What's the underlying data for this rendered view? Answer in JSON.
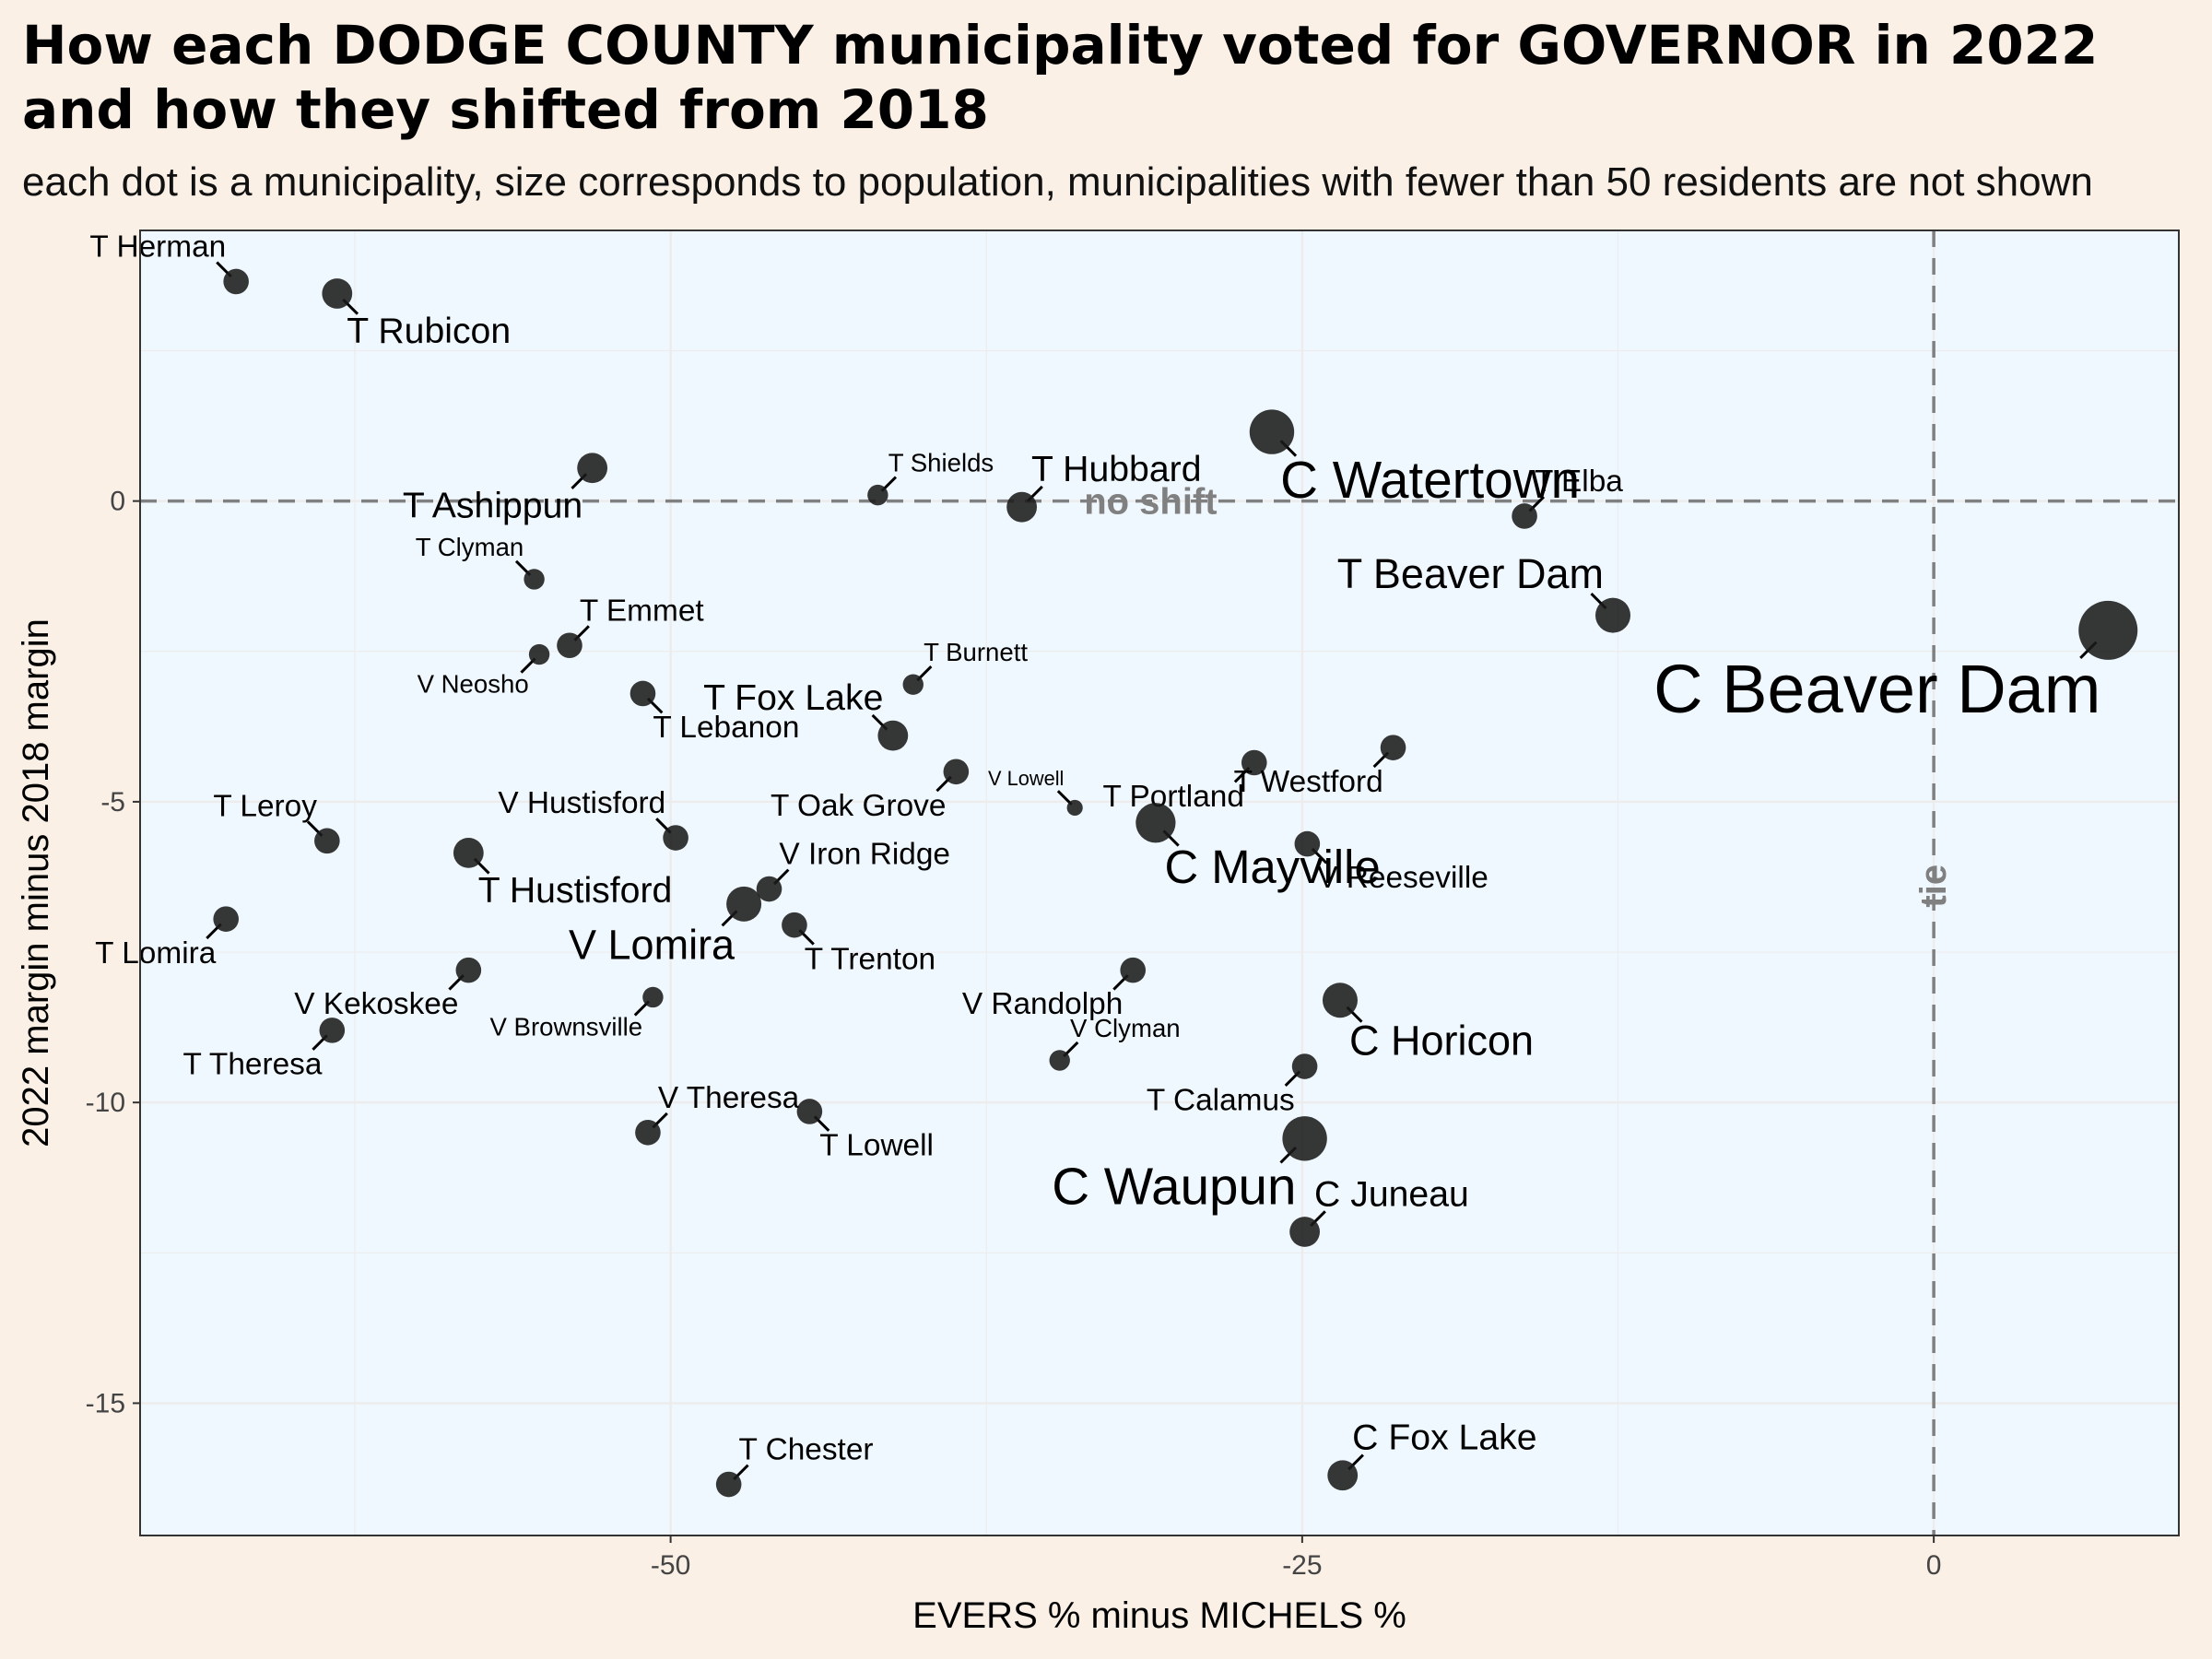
{
  "title": "How each DODGE COUNTY municipality voted for GOVERNOR in 2022 and how they shifted from 2018",
  "subtitle": "each dot is a municipality, size corresponds to population, municipalities with fewer than 50 residents are not shown",
  "colors": {
    "page_background": "#faf0e6",
    "panel_background": "#f0f8ff",
    "gridline": "#ececec",
    "point": "#1a1a1a",
    "reference_line": "#808080"
  },
  "chart_data": {
    "type": "scatter",
    "xlabel": "EVERS % minus MICHELS %",
    "ylabel": "2022 margin minus 2018 margin",
    "xlim": [
      -71,
      9.7
    ],
    "ylim": [
      -17.2,
      4.5
    ],
    "xticks": [
      -50,
      -25,
      0
    ],
    "yticks": [
      -15,
      -10,
      -5,
      0
    ],
    "grid": true,
    "reference_lines": [
      {
        "axis": "y",
        "value": 0,
        "label": "no shift",
        "style": "dashed"
      },
      {
        "axis": "x",
        "value": 0,
        "label": "tie",
        "style": "dashed"
      }
    ],
    "points": [
      {
        "name": "T Herman",
        "x": -67.2,
        "y": 3.65,
        "size": 3,
        "label_pos": "above-left"
      },
      {
        "name": "T Rubicon",
        "x": -63.2,
        "y": 3.45,
        "size": 4,
        "label_pos": "below-right"
      },
      {
        "name": "T Ashippun",
        "x": -53.1,
        "y": 0.55,
        "size": 4,
        "label_pos": "below-left"
      },
      {
        "name": "T Shields",
        "x": -41.8,
        "y": 0.1,
        "size": 2,
        "label_pos": "above-right"
      },
      {
        "name": "T Hubbard",
        "x": -36.1,
        "y": -0.1,
        "size": 4,
        "label_pos": "above-right"
      },
      {
        "name": "C Watertown",
        "x": -26.2,
        "y": 1.15,
        "size": 7,
        "label_pos": "below-right"
      },
      {
        "name": "T Elba",
        "x": -16.2,
        "y": -0.25,
        "size": 3,
        "label_pos": "above-right"
      },
      {
        "name": "T Beaver Dam",
        "x": -12.7,
        "y": -1.9,
        "size": 5,
        "label_pos": "above-left"
      },
      {
        "name": "C Beaver Dam",
        "x": 6.9,
        "y": -2.15,
        "size": 10,
        "label_pos": "below-left"
      },
      {
        "name": "T Clyman",
        "x": -55.4,
        "y": -1.3,
        "size": 2,
        "label_pos": "above-left"
      },
      {
        "name": "T Emmet",
        "x": -54.0,
        "y": -2.4,
        "size": 3,
        "label_pos": "above-right"
      },
      {
        "name": "V Neosho",
        "x": -55.2,
        "y": -2.55,
        "size": 2,
        "label_pos": "below-left"
      },
      {
        "name": "T Lebanon",
        "x": -51.1,
        "y": -3.2,
        "size": 3,
        "label_pos": "below-right"
      },
      {
        "name": "T Burnett",
        "x": -40.4,
        "y": -3.05,
        "size": 2,
        "label_pos": "above-right"
      },
      {
        "name": "T Fox Lake",
        "x": -41.2,
        "y": -3.9,
        "size": 4,
        "label_pos": "above-left"
      },
      {
        "name": "T Oak Grove",
        "x": -38.7,
        "y": -4.5,
        "size": 3,
        "label_pos": "below-left"
      },
      {
        "name": "V Lowell",
        "x": -34.0,
        "y": -5.1,
        "size": 1,
        "label_pos": "above-left"
      },
      {
        "name": "T Portland",
        "x": -26.9,
        "y": -4.35,
        "size": 3,
        "label_pos": "below-left"
      },
      {
        "name": "T Westford",
        "x": -21.4,
        "y": -4.1,
        "size": 3,
        "label_pos": "below-left"
      },
      {
        "name": "C Mayville",
        "x": -30.8,
        "y": -5.35,
        "size": 6,
        "label_pos": "below-right"
      },
      {
        "name": "V Reeseville",
        "x": -24.8,
        "y": -5.7,
        "size": 3,
        "label_pos": "below-right"
      },
      {
        "name": "T Leroy",
        "x": -63.6,
        "y": -5.65,
        "size": 3,
        "label_pos": "above-left"
      },
      {
        "name": "T Hustisford",
        "x": -58.0,
        "y": -5.85,
        "size": 4,
        "label_pos": "below-right"
      },
      {
        "name": "V Hustisford",
        "x": -49.8,
        "y": -5.6,
        "size": 3,
        "label_pos": "above-left"
      },
      {
        "name": "V Iron Ridge",
        "x": -46.1,
        "y": -6.45,
        "size": 3,
        "label_pos": "above-right"
      },
      {
        "name": "V Lomira",
        "x": -47.1,
        "y": -6.7,
        "size": 5,
        "label_pos": "below-left"
      },
      {
        "name": "T Trenton",
        "x": -45.1,
        "y": -7.05,
        "size": 3,
        "label_pos": "below-right"
      },
      {
        "name": "T Lomira",
        "x": -67.6,
        "y": -6.95,
        "size": 3,
        "label_pos": "below-left"
      },
      {
        "name": "V Kekoskee",
        "x": -58.0,
        "y": -7.8,
        "size": 3,
        "label_pos": "below-left"
      },
      {
        "name": "V Brownsville",
        "x": -50.7,
        "y": -8.25,
        "size": 2,
        "label_pos": "below-left"
      },
      {
        "name": "V Randolph",
        "x": -31.7,
        "y": -7.8,
        "size": 3,
        "label_pos": "below-left"
      },
      {
        "name": "C Horicon",
        "x": -23.5,
        "y": -8.3,
        "size": 5,
        "label_pos": "below-right"
      },
      {
        "name": "T Theresa",
        "x": -63.4,
        "y": -8.8,
        "size": 3,
        "label_pos": "below-left"
      },
      {
        "name": "V Clyman",
        "x": -34.6,
        "y": -9.3,
        "size": 2,
        "label_pos": "above-right"
      },
      {
        "name": "T Calamus",
        "x": -24.9,
        "y": -9.4,
        "size": 3,
        "label_pos": "below-left"
      },
      {
        "name": "V Theresa",
        "x": -50.9,
        "y": -10.5,
        "size": 3,
        "label_pos": "above-right"
      },
      {
        "name": "T Lowell",
        "x": -44.5,
        "y": -10.15,
        "size": 3,
        "label_pos": "below-right"
      },
      {
        "name": "C Waupun",
        "x": -24.9,
        "y": -10.6,
        "size": 7,
        "label_pos": "below-left"
      },
      {
        "name": "C Juneau",
        "x": -24.9,
        "y": -12.15,
        "size": 4,
        "label_pos": "above-right"
      },
      {
        "name": "T Chester",
        "x": -47.7,
        "y": -16.35,
        "size": 3,
        "label_pos": "above-right"
      },
      {
        "name": "C Fox Lake",
        "x": -23.4,
        "y": -16.2,
        "size": 4,
        "label_pos": "above-right"
      }
    ]
  }
}
